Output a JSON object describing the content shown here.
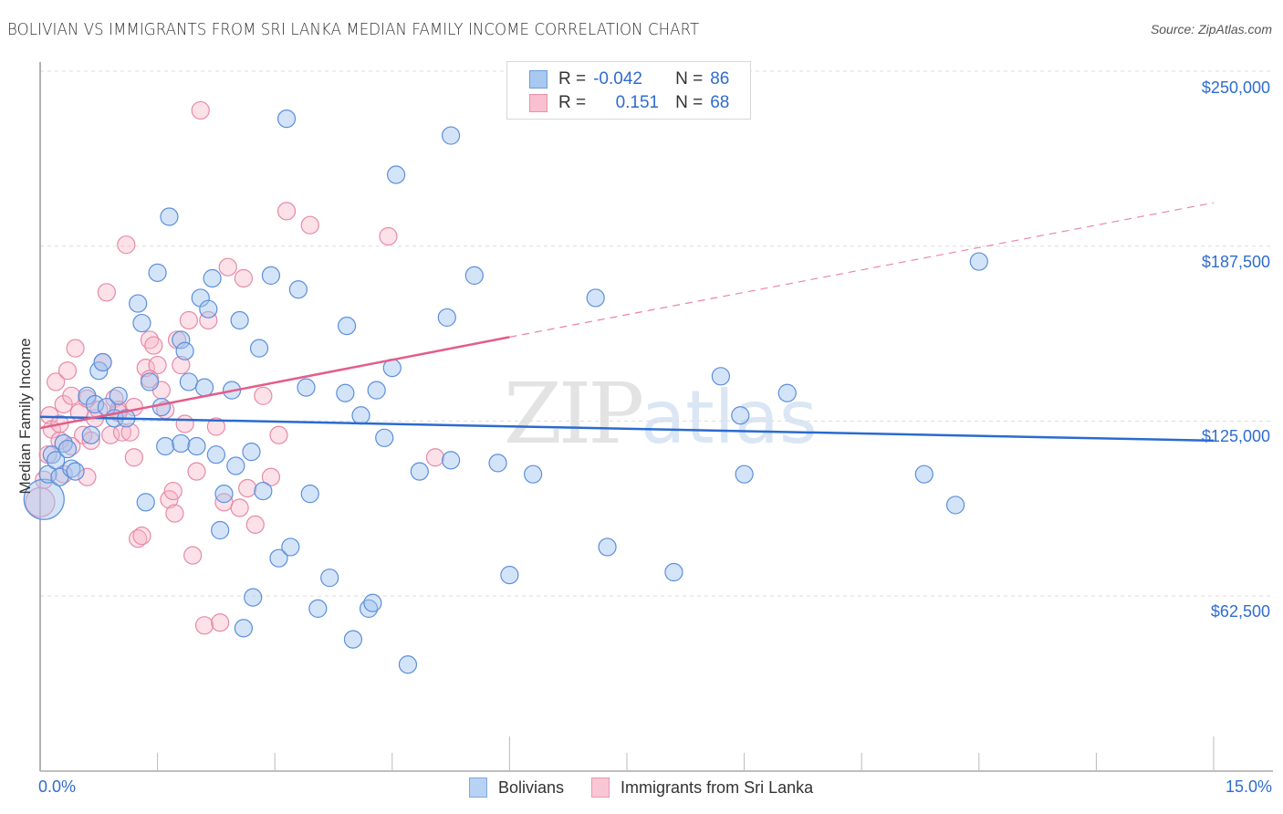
{
  "header": {
    "title": "BOLIVIAN VS IMMIGRANTS FROM SRI LANKA MEDIAN FAMILY INCOME CORRELATION CHART",
    "source": "Source: ZipAtlas.com"
  },
  "legend": {
    "rows": [
      {
        "r_label": "R =",
        "r_value": "-0.042",
        "n_label": "N =",
        "n_value": "86",
        "color": "#a8c8f0",
        "border": "#6b9be0"
      },
      {
        "r_label": "R =",
        "r_value": "0.151",
        "n_label": "N =",
        "n_value": "68",
        "color": "#f8c0d0",
        "border": "#e890a8"
      }
    ]
  },
  "bottom_legend": {
    "items": [
      {
        "label": "Bolivians",
        "color": "#b8d2f4",
        "border": "#7ea8e4"
      },
      {
        "label": "Immigrants from Sri Lanka",
        "color": "#f9c6d4",
        "border": "#e99ab0"
      }
    ]
  },
  "axes": {
    "ylabel": "Median Family Income",
    "x_min_label": "0.0%",
    "x_max_label": "15.0%",
    "y_ticks": [
      "$250,000",
      "$187,500",
      "$125,000",
      "$62,500"
    ]
  },
  "watermark": {
    "part1": "ZIP",
    "part2": "atlas"
  },
  "colors": {
    "blue_fill": "rgba(160,195,240,0.45)",
    "blue_stroke": "#5b8fdc",
    "pink_fill": "rgba(248,180,200,0.40)",
    "pink_stroke": "#e78aa6",
    "blue_line": "#2a6bd0",
    "pink_line": "#e35d88",
    "accent_text": "#2f6ccf"
  },
  "chart_data": {
    "type": "scatter",
    "title": "BOLIVIAN VS IMMIGRANTS FROM SRI LANKA MEDIAN FAMILY INCOME CORRELATION CHART",
    "xlabel": "",
    "ylabel": "Median Family Income",
    "xlim": [
      0,
      15
    ],
    "ylim": [
      0,
      265000
    ],
    "x_tick_labels": [
      "0.0%",
      "15.0%"
    ],
    "y_tick_labels": [
      "$62,500",
      "$125,000",
      "$187,500",
      "$250,000"
    ],
    "grid": true,
    "legend_position": "bottom",
    "series": [
      {
        "name": "Bolivians",
        "R": -0.042,
        "N": 86,
        "trend": {
          "x": [
            0,
            15
          ],
          "y": [
            126500,
            118000
          ]
        },
        "points": [
          [
            0.05,
            97000,
            22
          ],
          [
            0.1,
            106000
          ],
          [
            0.15,
            113000
          ],
          [
            0.2,
            111000
          ],
          [
            0.25,
            105000
          ],
          [
            0.3,
            117000
          ],
          [
            0.35,
            115000
          ],
          [
            0.4,
            108000
          ],
          [
            0.45,
            107000
          ],
          [
            0.6,
            134000
          ],
          [
            0.65,
            120000
          ],
          [
            0.7,
            131000
          ],
          [
            0.75,
            143000
          ],
          [
            0.8,
            146000
          ],
          [
            0.85,
            130000
          ],
          [
            0.95,
            126000
          ],
          [
            1.0,
            134000
          ],
          [
            1.1,
            126000
          ],
          [
            1.25,
            167000
          ],
          [
            1.3,
            160000
          ],
          [
            1.35,
            96000
          ],
          [
            1.4,
            139000
          ],
          [
            1.5,
            178000
          ],
          [
            1.55,
            130000
          ],
          [
            1.6,
            116000
          ],
          [
            1.65,
            198000
          ],
          [
            1.8,
            117000
          ],
          [
            1.8,
            154000
          ],
          [
            1.85,
            150000
          ],
          [
            1.9,
            139000
          ],
          [
            2.0,
            116000
          ],
          [
            2.05,
            169000
          ],
          [
            2.1,
            137000
          ],
          [
            2.15,
            165000
          ],
          [
            2.2,
            176000
          ],
          [
            2.25,
            113000
          ],
          [
            2.3,
            86000
          ],
          [
            2.35,
            99000
          ],
          [
            2.45,
            136000
          ],
          [
            2.5,
            109000
          ],
          [
            2.55,
            161000
          ],
          [
            2.6,
            51000
          ],
          [
            2.7,
            114000
          ],
          [
            2.72,
            62000
          ],
          [
            2.8,
            151000
          ],
          [
            2.85,
            100000
          ],
          [
            2.95,
            177000
          ],
          [
            3.05,
            76000
          ],
          [
            3.15,
            233000
          ],
          [
            3.2,
            80000
          ],
          [
            3.3,
            172000
          ],
          [
            3.4,
            137000
          ],
          [
            3.45,
            99000
          ],
          [
            3.55,
            58000
          ],
          [
            3.7,
            69000
          ],
          [
            3.9,
            135000
          ],
          [
            3.92,
            159000
          ],
          [
            4.0,
            47000
          ],
          [
            4.1,
            127000
          ],
          [
            4.2,
            58000
          ],
          [
            4.25,
            60000
          ],
          [
            4.3,
            136000
          ],
          [
            4.4,
            119000
          ],
          [
            4.5,
            144000
          ],
          [
            4.55,
            213000
          ],
          [
            4.7,
            38000
          ],
          [
            4.85,
            107000
          ],
          [
            5.2,
            162000
          ],
          [
            5.25,
            111000
          ],
          [
            5.25,
            227000
          ],
          [
            5.55,
            177000
          ],
          [
            5.85,
            110000
          ],
          [
            6.0,
            70000
          ],
          [
            6.3,
            106000
          ],
          [
            7.1,
            169000
          ],
          [
            7.25,
            80000
          ],
          [
            8.1,
            71000
          ],
          [
            8.7,
            141000
          ],
          [
            8.95,
            127000
          ],
          [
            9.0,
            106000
          ],
          [
            9.55,
            135000
          ],
          [
            11.3,
            106000
          ],
          [
            11.7,
            95000
          ],
          [
            12.0,
            182000
          ]
        ]
      },
      {
        "name": "Immigrants from Sri Lanka",
        "R": 0.151,
        "N": 68,
        "trend": {
          "x": [
            0,
            6.0,
            15
          ],
          "y": [
            122500,
            155000,
            203000
          ],
          "solid_until_x": 6.0
        },
        "points": [
          [
            0.0,
            96000,
            16
          ],
          [
            0.05,
            104000
          ],
          [
            0.1,
            113000
          ],
          [
            0.12,
            127000
          ],
          [
            0.15,
            122000
          ],
          [
            0.2,
            139000
          ],
          [
            0.25,
            118000
          ],
          [
            0.3,
            131000
          ],
          [
            0.3,
            106000
          ],
          [
            0.35,
            143000
          ],
          [
            0.4,
            134000
          ],
          [
            0.45,
            151000
          ],
          [
            0.5,
            128000
          ],
          [
            0.55,
            120000
          ],
          [
            0.6,
            105000
          ],
          [
            0.65,
            118000
          ],
          [
            0.7,
            126000
          ],
          [
            0.75,
            129000
          ],
          [
            0.8,
            146000
          ],
          [
            0.85,
            171000
          ],
          [
            0.9,
            120000
          ],
          [
            0.95,
            133000
          ],
          [
            1.0,
            129000
          ],
          [
            1.05,
            121000
          ],
          [
            1.1,
            188000
          ],
          [
            1.15,
            121000
          ],
          [
            1.2,
            112000
          ],
          [
            1.2,
            130000
          ],
          [
            1.25,
            83000
          ],
          [
            1.3,
            84000
          ],
          [
            1.35,
            144000
          ],
          [
            1.4,
            154000
          ],
          [
            1.45,
            152000
          ],
          [
            1.5,
            145000
          ],
          [
            1.55,
            136000
          ],
          [
            1.6,
            129000
          ],
          [
            1.65,
            97000
          ],
          [
            1.7,
            100000
          ],
          [
            1.72,
            92000
          ],
          [
            1.75,
            154000
          ],
          [
            1.8,
            145000
          ],
          [
            1.85,
            124000
          ],
          [
            1.9,
            161000
          ],
          [
            1.95,
            77000
          ],
          [
            2.0,
            107000
          ],
          [
            2.05,
            236000
          ],
          [
            2.1,
            52000
          ],
          [
            2.15,
            161000
          ],
          [
            2.25,
            123000
          ],
          [
            2.3,
            53000
          ],
          [
            2.35,
            96000
          ],
          [
            2.4,
            180000
          ],
          [
            2.55,
            94000
          ],
          [
            2.6,
            176000
          ],
          [
            2.65,
            101000
          ],
          [
            2.75,
            88000
          ],
          [
            2.85,
            134000
          ],
          [
            2.95,
            105000
          ],
          [
            3.05,
            120000
          ],
          [
            3.15,
            200000
          ],
          [
            3.45,
            195000
          ],
          [
            4.45,
            191000
          ],
          [
            5.05,
            112000
          ],
          [
            1.0,
            128000
          ],
          [
            0.4,
            116000
          ],
          [
            0.6,
            133000
          ],
          [
            1.4,
            140000
          ],
          [
            0.25,
            124000
          ]
        ]
      }
    ]
  }
}
